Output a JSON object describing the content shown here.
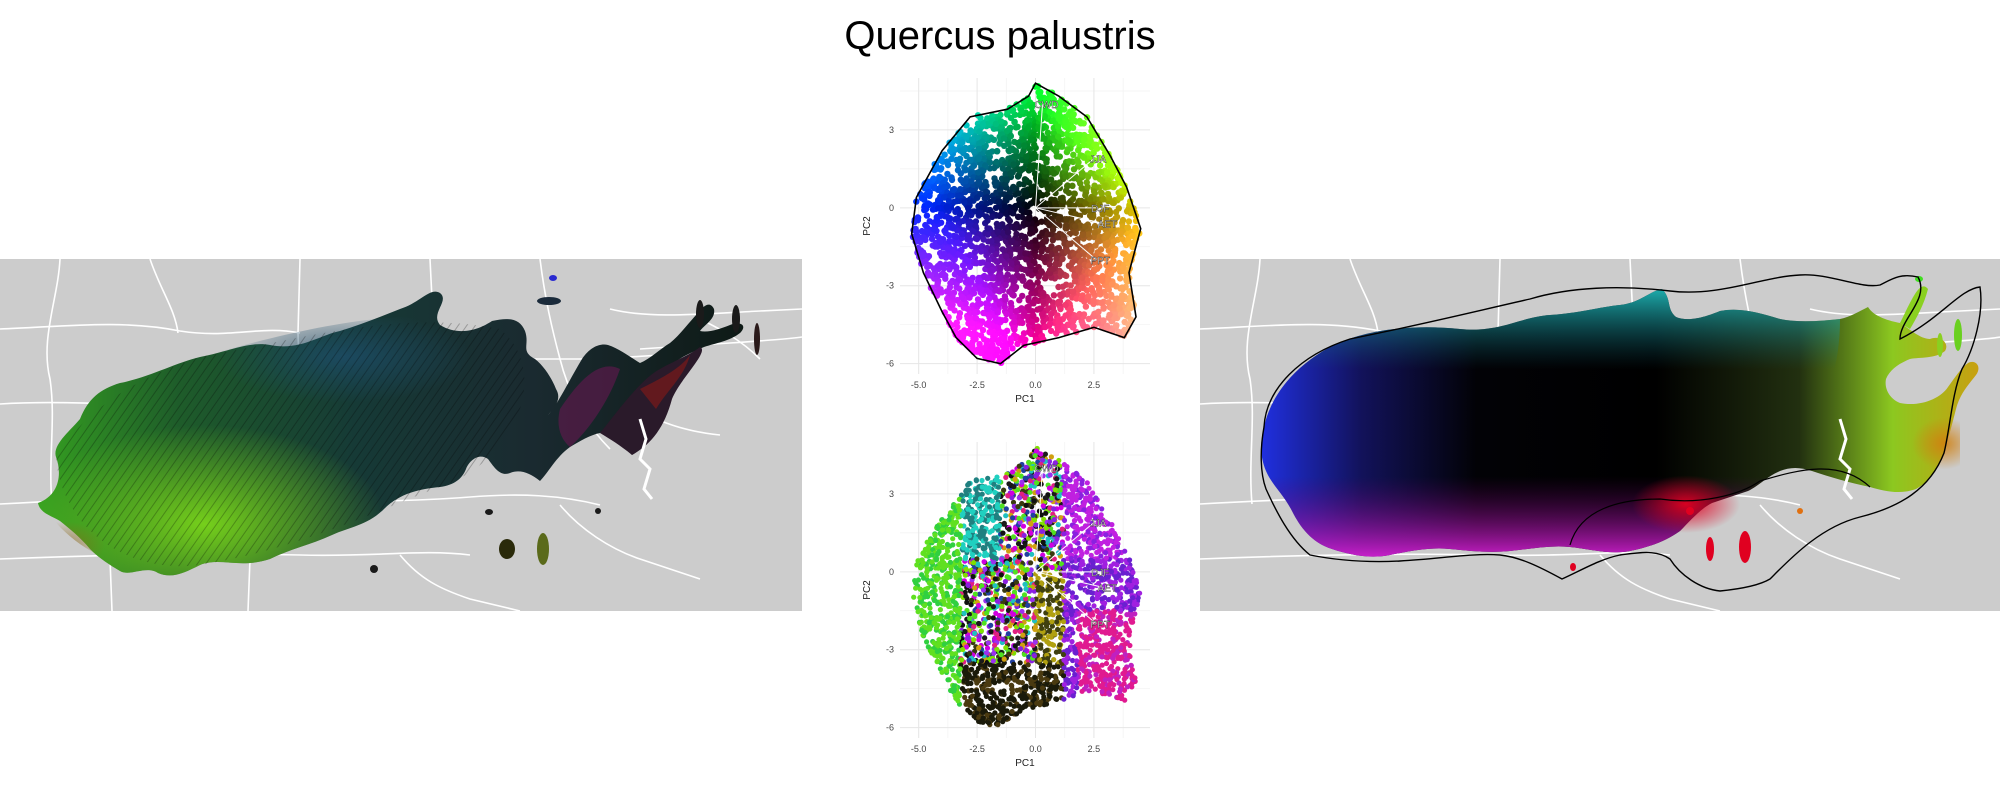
{
  "title": "Quercus palustris",
  "colors": {
    "land": "#cccccc",
    "border": "#ffffff",
    "hull": "#000000",
    "grid": "#ebebeb",
    "vector": "#ffffff"
  },
  "chart_data": [
    {
      "type": "scatter",
      "panel": "top PCA biplot",
      "xlabel": "PC1",
      "ylabel": "PC2",
      "xticks": [
        "-5.0",
        "-2.5",
        "0.0",
        "2.5"
      ],
      "yticks": [
        "3",
        "0",
        "-3",
        "-6"
      ],
      "xlim": [
        -5.8,
        4.9
      ],
      "ylim": [
        -6.4,
        5.0
      ],
      "grid": true,
      "hull": true,
      "point_cloud_extent": {
        "x": [
          -5.3,
          4.5
        ],
        "y": [
          -6.1,
          4.8
        ]
      },
      "vectors": [
        {
          "name": "CWD",
          "x": 0.3,
          "y": 4.0
        },
        {
          "name": "JJA",
          "x": 2.5,
          "y": 1.9
        },
        {
          "name": "DJF",
          "x": 2.6,
          "y": 0.0
        },
        {
          "name": "AET",
          "x": 2.9,
          "y": -0.6
        },
        {
          "name": "PPT",
          "x": 2.6,
          "y": -2.0
        }
      ]
    },
    {
      "type": "scatter",
      "panel": "bottom PCA biplot",
      "xlabel": "PC1",
      "ylabel": "PC2",
      "xticks": [
        "-5.0",
        "-2.5",
        "0.0",
        "2.5"
      ],
      "yticks": [
        "3",
        "0",
        "-3",
        "-6"
      ],
      "xlim": [
        -5.8,
        4.9
      ],
      "ylim": [
        -6.4,
        5.0
      ],
      "grid": true,
      "hull": false,
      "point_cloud_extent": {
        "x": [
          -5.3,
          4.5
        ],
        "y": [
          -6.1,
          4.8
        ]
      },
      "vectors": [
        {
          "name": "CWD",
          "x": 0.3,
          "y": 4.0
        },
        {
          "name": "JJA",
          "x": 2.5,
          "y": 1.9
        },
        {
          "name": "DJF",
          "x": 2.6,
          "y": 0.0
        },
        {
          "name": "AET",
          "x": 2.9,
          "y": -0.6
        },
        {
          "name": "PPT",
          "x": 2.6,
          "y": -2.0
        }
      ]
    }
  ],
  "maps": [
    {
      "panel": "left map",
      "style": "terrain-shaded climate colors"
    },
    {
      "panel": "right map",
      "style": "smooth climate colors with hull outline"
    }
  ]
}
